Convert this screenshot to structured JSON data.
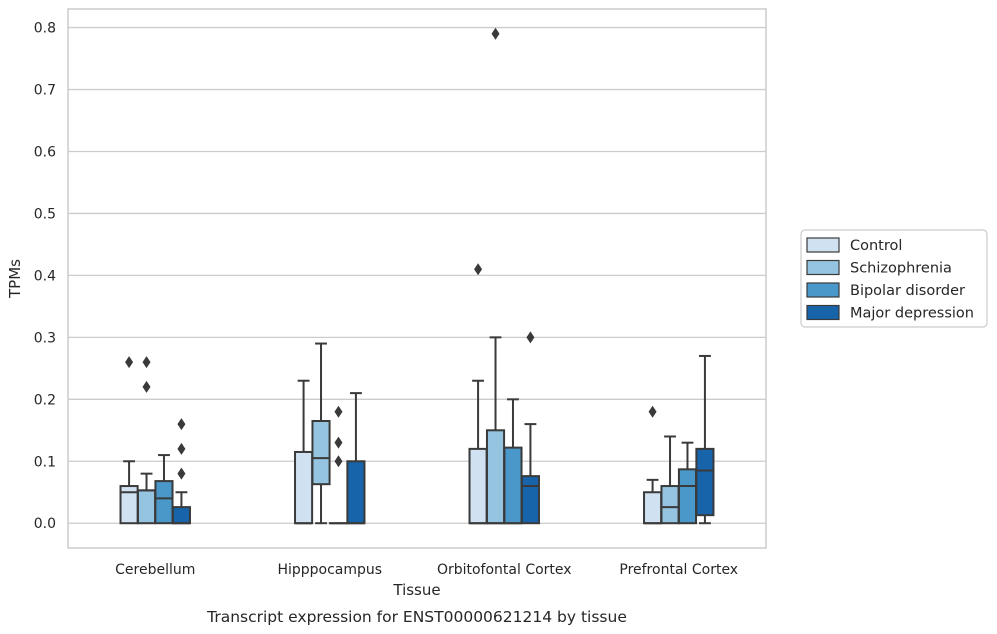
{
  "chart_data": {
    "type": "box",
    "title": "",
    "caption": "Transcript expression for ENST00000621214 by tissue",
    "xlabel": "Tissue",
    "ylabel": "TPMs",
    "ylim": [
      -0.04,
      0.83
    ],
    "yticks": [
      "0.0",
      "0.1",
      "0.2",
      "0.3",
      "0.4",
      "0.5",
      "0.6",
      "0.7",
      "0.8"
    ],
    "grid": "horizontal",
    "legend_position": "right",
    "categories": [
      "Cerebellum",
      "Hipppocampus",
      "Orbitofontal Cortex",
      "Prefrontal Cortex"
    ],
    "series": [
      {
        "name": "Control",
        "color": "#d0e1f2",
        "boxes": [
          {
            "whislo": 0,
            "q1": 0,
            "med": 0.05,
            "q3": 0.06,
            "whishi": 0.1,
            "fliers": [
              0.26
            ]
          },
          {
            "whislo": 0,
            "q1": 0,
            "med": 0,
            "q3": 0.115,
            "whishi": 0.23,
            "fliers": []
          },
          {
            "whislo": 0,
            "q1": 0,
            "med": 0,
            "q3": 0.12,
            "whishi": 0.23,
            "fliers": [
              0.41
            ]
          },
          {
            "whislo": 0,
            "q1": 0,
            "med": 0,
            "q3": 0.05,
            "whishi": 0.07,
            "fliers": [
              0.18
            ]
          }
        ]
      },
      {
        "name": "Schizophrenia",
        "color": "#94c4df",
        "boxes": [
          {
            "whislo": 0,
            "q1": 0,
            "med": 0.053,
            "q3": 0.053,
            "whishi": 0.08,
            "fliers": [
              0.22,
              0.26
            ]
          },
          {
            "whislo": 0,
            "q1": 0.063,
            "med": 0.105,
            "q3": 0.165,
            "whishi": 0.29,
            "fliers": []
          },
          {
            "whislo": 0,
            "q1": 0,
            "med": 0,
            "q3": 0.15,
            "whishi": 0.3,
            "fliers": [
              0.79
            ]
          },
          {
            "whislo": 0,
            "q1": 0,
            "med": 0.026,
            "q3": 0.06,
            "whishi": 0.14,
            "fliers": []
          }
        ]
      },
      {
        "name": "Bipolar disorder",
        "color": "#4a98c9",
        "boxes": [
          {
            "whislo": 0,
            "q1": 0,
            "med": 0.04,
            "q3": 0.068,
            "whishi": 0.11,
            "fliers": []
          },
          {
            "whislo": 0,
            "q1": 0,
            "med": 0,
            "q3": 0,
            "whishi": 0,
            "fliers": [
              0.1,
              0.13,
              0.18
            ]
          },
          {
            "whislo": 0,
            "q1": 0,
            "med": 0,
            "q3": 0.122,
            "whishi": 0.2,
            "fliers": []
          },
          {
            "whislo": 0,
            "q1": 0,
            "med": 0.06,
            "q3": 0.087,
            "whishi": 0.13,
            "fliers": []
          }
        ]
      },
      {
        "name": "Major depression",
        "color": "#1764ab",
        "boxes": [
          {
            "whislo": 0,
            "q1": 0,
            "med": 0,
            "q3": 0.026,
            "whishi": 0.05,
            "fliers": [
              0.08,
              0.12,
              0.16
            ]
          },
          {
            "whislo": 0,
            "q1": 0,
            "med": 0,
            "q3": 0.1,
            "whishi": 0.21,
            "fliers": []
          },
          {
            "whislo": 0,
            "q1": 0,
            "med": 0.06,
            "q3": 0.076,
            "whishi": 0.16,
            "fliers": [
              0.3
            ]
          },
          {
            "whislo": 0,
            "q1": 0.013,
            "med": 0.085,
            "q3": 0.12,
            "whishi": 0.27,
            "fliers": []
          }
        ]
      }
    ]
  }
}
